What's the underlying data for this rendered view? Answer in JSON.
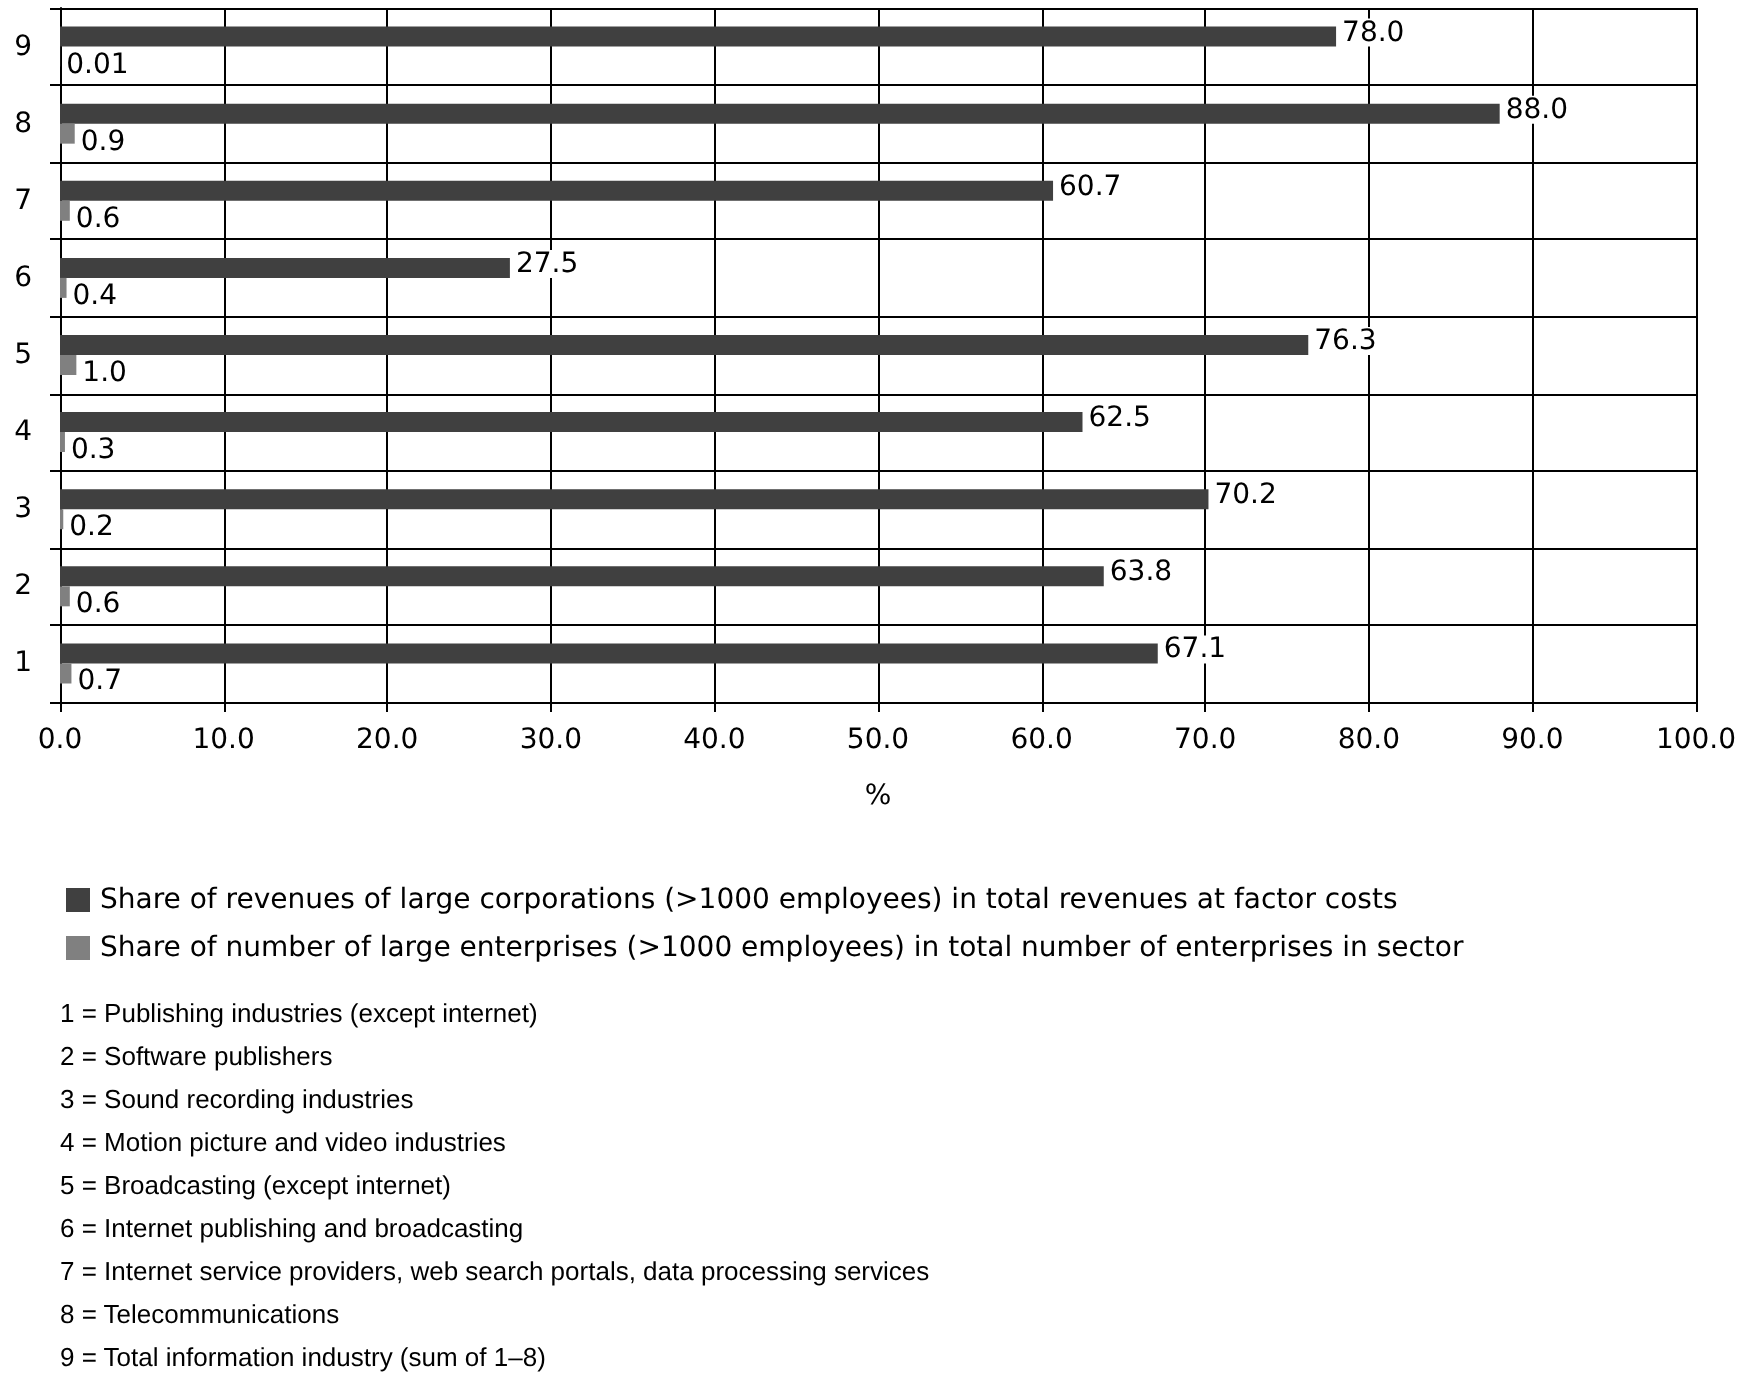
{
  "chart_data": {
    "type": "bar",
    "orientation": "horizontal",
    "xlabel": "%",
    "categories": [
      "9",
      "8",
      "7",
      "6",
      "5",
      "4",
      "3",
      "2",
      "1"
    ],
    "series": [
      {
        "name": "Share of revenues of large corporations (>1000 employees) in total revenues at factor costs",
        "color": "#404040",
        "values": [
          78.0,
          88.0,
          60.7,
          27.5,
          76.3,
          62.5,
          70.2,
          63.8,
          67.1
        ],
        "value_labels": [
          "78.0",
          "88.0",
          "60.7",
          "27.5",
          "76.3",
          "62.5",
          "70.2",
          "63.8",
          "67.1"
        ]
      },
      {
        "name": "Share of number of large enterprises (>1000 employees) in total number of enterprises in sector",
        "color": "#808080",
        "values": [
          0.01,
          0.9,
          0.6,
          0.4,
          1.0,
          0.3,
          0.2,
          0.6,
          0.7
        ],
        "value_labels": [
          "0.01",
          "0.9",
          "0.6",
          "0.4",
          "1.0",
          "0.3",
          "0.2",
          "0.6",
          "0.7"
        ]
      }
    ],
    "xlim": [
      0,
      100
    ],
    "xticks": [
      {
        "value": 0,
        "label": "0.0"
      },
      {
        "value": 10,
        "label": "10.0"
      },
      {
        "value": 20,
        "label": "20.0"
      },
      {
        "value": 30,
        "label": "30.0"
      },
      {
        "value": 40,
        "label": "40.0"
      },
      {
        "value": 50,
        "label": "50.0"
      },
      {
        "value": 60,
        "label": "60.0"
      },
      {
        "value": 70,
        "label": "70.0"
      },
      {
        "value": 80,
        "label": "80.0"
      },
      {
        "value": 90,
        "label": "90.0"
      },
      {
        "value": 100,
        "label": "100.0"
      }
    ],
    "grid": true,
    "legend": "bottom",
    "annotations": [
      "1 = Publishing industries (except internet)",
      "2 = Software publishers",
      "3 = Sound recording industries",
      "4 = Motion picture and video industries",
      "5 = Broadcasting (except internet)",
      "6 = Internet publishing and broadcasting",
      "7 = Internet service providers, web search portals, data processing services",
      "8 = Telecommunications",
      "9 = Total information industry (sum of 1–8)"
    ]
  }
}
